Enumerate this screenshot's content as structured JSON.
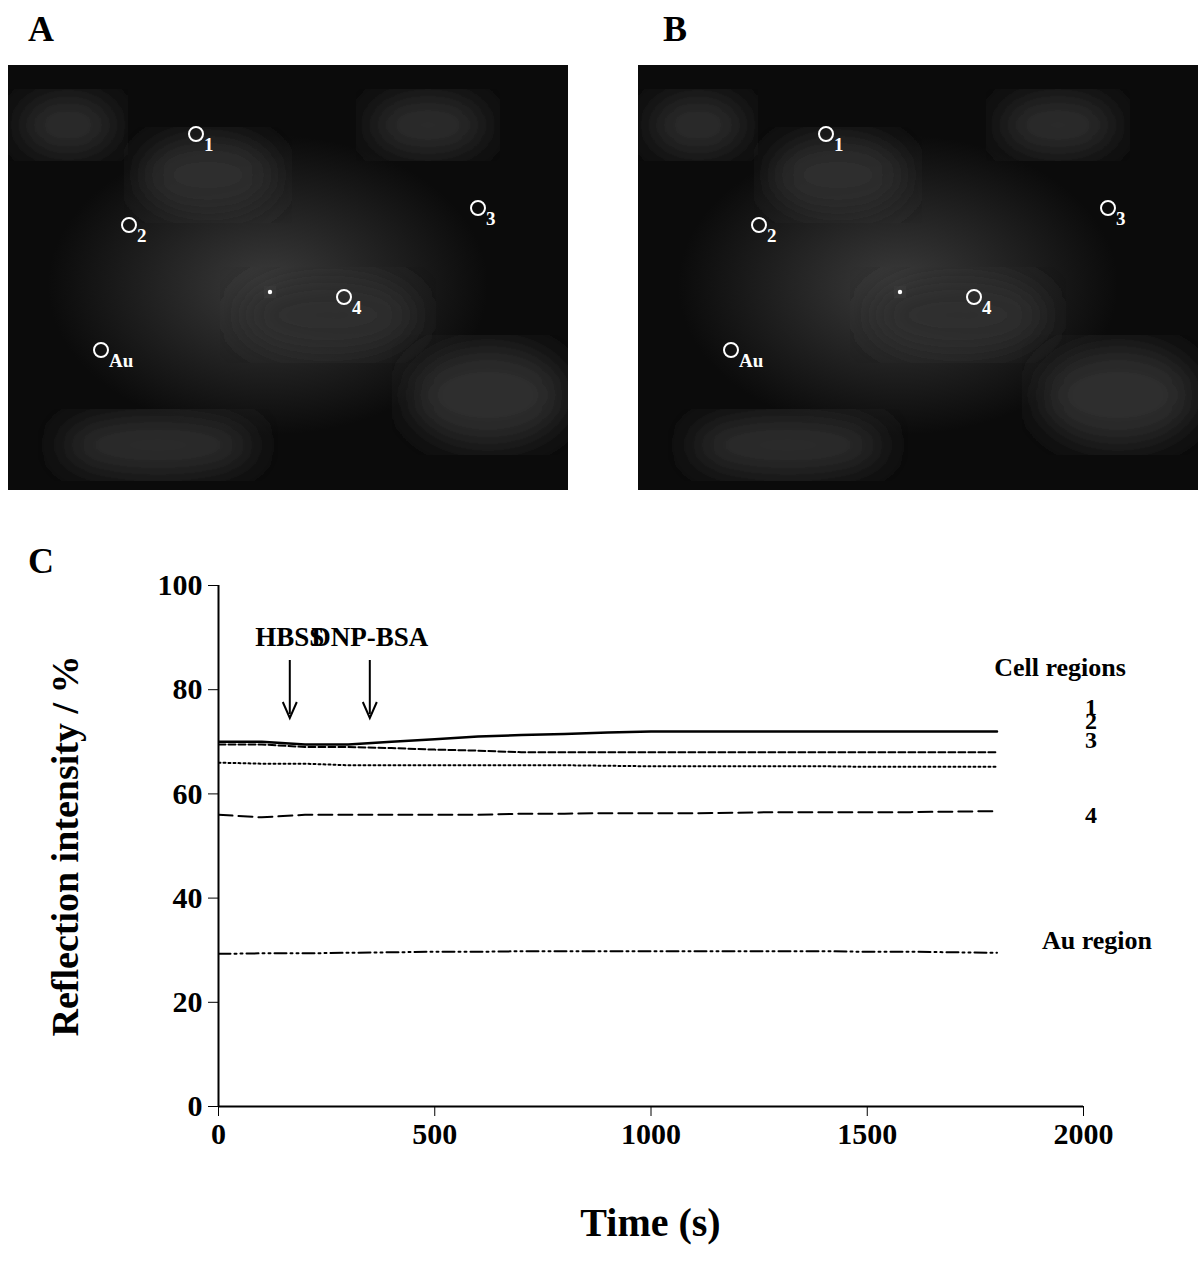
{
  "panels": [
    {
      "letter": "A",
      "regions": [
        "1",
        "2",
        "3",
        "4",
        "Au"
      ]
    },
    {
      "letter": "B",
      "regions": [
        "1",
        "2",
        "3",
        "4",
        "Au"
      ]
    }
  ],
  "chart_data": {
    "letter": "C",
    "type": "line",
    "xlabel": "Time (s)",
    "ylabel": "Reflection intensity / %",
    "x": [
      0,
      100,
      200,
      300,
      400,
      500,
      600,
      700,
      800,
      900,
      1000,
      1100,
      1200,
      1300,
      1400,
      1500,
      1600,
      1700,
      1800
    ],
    "series": [
      {
        "name": "1",
        "color": "#000000",
        "line_style": "solid",
        "values": [
          70,
          70,
          69.5,
          69.5,
          70,
          70.5,
          71,
          71.3,
          71.5,
          71.8,
          72,
          72,
          72,
          72,
          72,
          72,
          72,
          72,
          72
        ]
      },
      {
        "name": "2",
        "color": "#000000",
        "line_style": "dashed",
        "values": [
          69.5,
          69.5,
          69,
          69,
          68.8,
          68.5,
          68.3,
          68,
          68,
          68,
          68,
          68,
          68,
          68,
          68,
          68,
          68,
          68,
          68
        ]
      },
      {
        "name": "3",
        "color": "#000000",
        "line_style": "dotted",
        "values": [
          66,
          65.8,
          65.8,
          65.5,
          65.5,
          65.5,
          65.5,
          65.5,
          65.5,
          65.4,
          65.3,
          65.3,
          65.3,
          65.3,
          65.3,
          65.2,
          65.2,
          65.2,
          65.2
        ]
      },
      {
        "name": "4",
        "color": "#000000",
        "line_style": "long-dash",
        "values": [
          56,
          55.5,
          56,
          56,
          56,
          56,
          56,
          56.2,
          56.2,
          56.3,
          56.3,
          56.3,
          56.4,
          56.5,
          56.5,
          56.5,
          56.5,
          56.6,
          56.7
        ]
      },
      {
        "name": "Au region",
        "color": "#000000",
        "line_style": "dash-dot-dot",
        "values": [
          29.3,
          29.4,
          29.4,
          29.5,
          29.6,
          29.7,
          29.7,
          29.8,
          29.8,
          29.8,
          29.8,
          29.8,
          29.8,
          29.8,
          29.8,
          29.7,
          29.7,
          29.6,
          29.5
        ]
      }
    ],
    "legend_title": "Cell regions",
    "legend": "right",
    "annotations": [
      {
        "text": "HBSS",
        "x": 166
      },
      {
        "text": "DNP-BSA",
        "x": 351
      }
    ],
    "xlim": [
      0,
      2000
    ],
    "xticks": [
      0,
      500,
      1000,
      1500,
      2000
    ],
    "ylim": [
      0,
      100
    ],
    "yticks": [
      0,
      20,
      40,
      60,
      80,
      100
    ],
    "grid": false
  }
}
